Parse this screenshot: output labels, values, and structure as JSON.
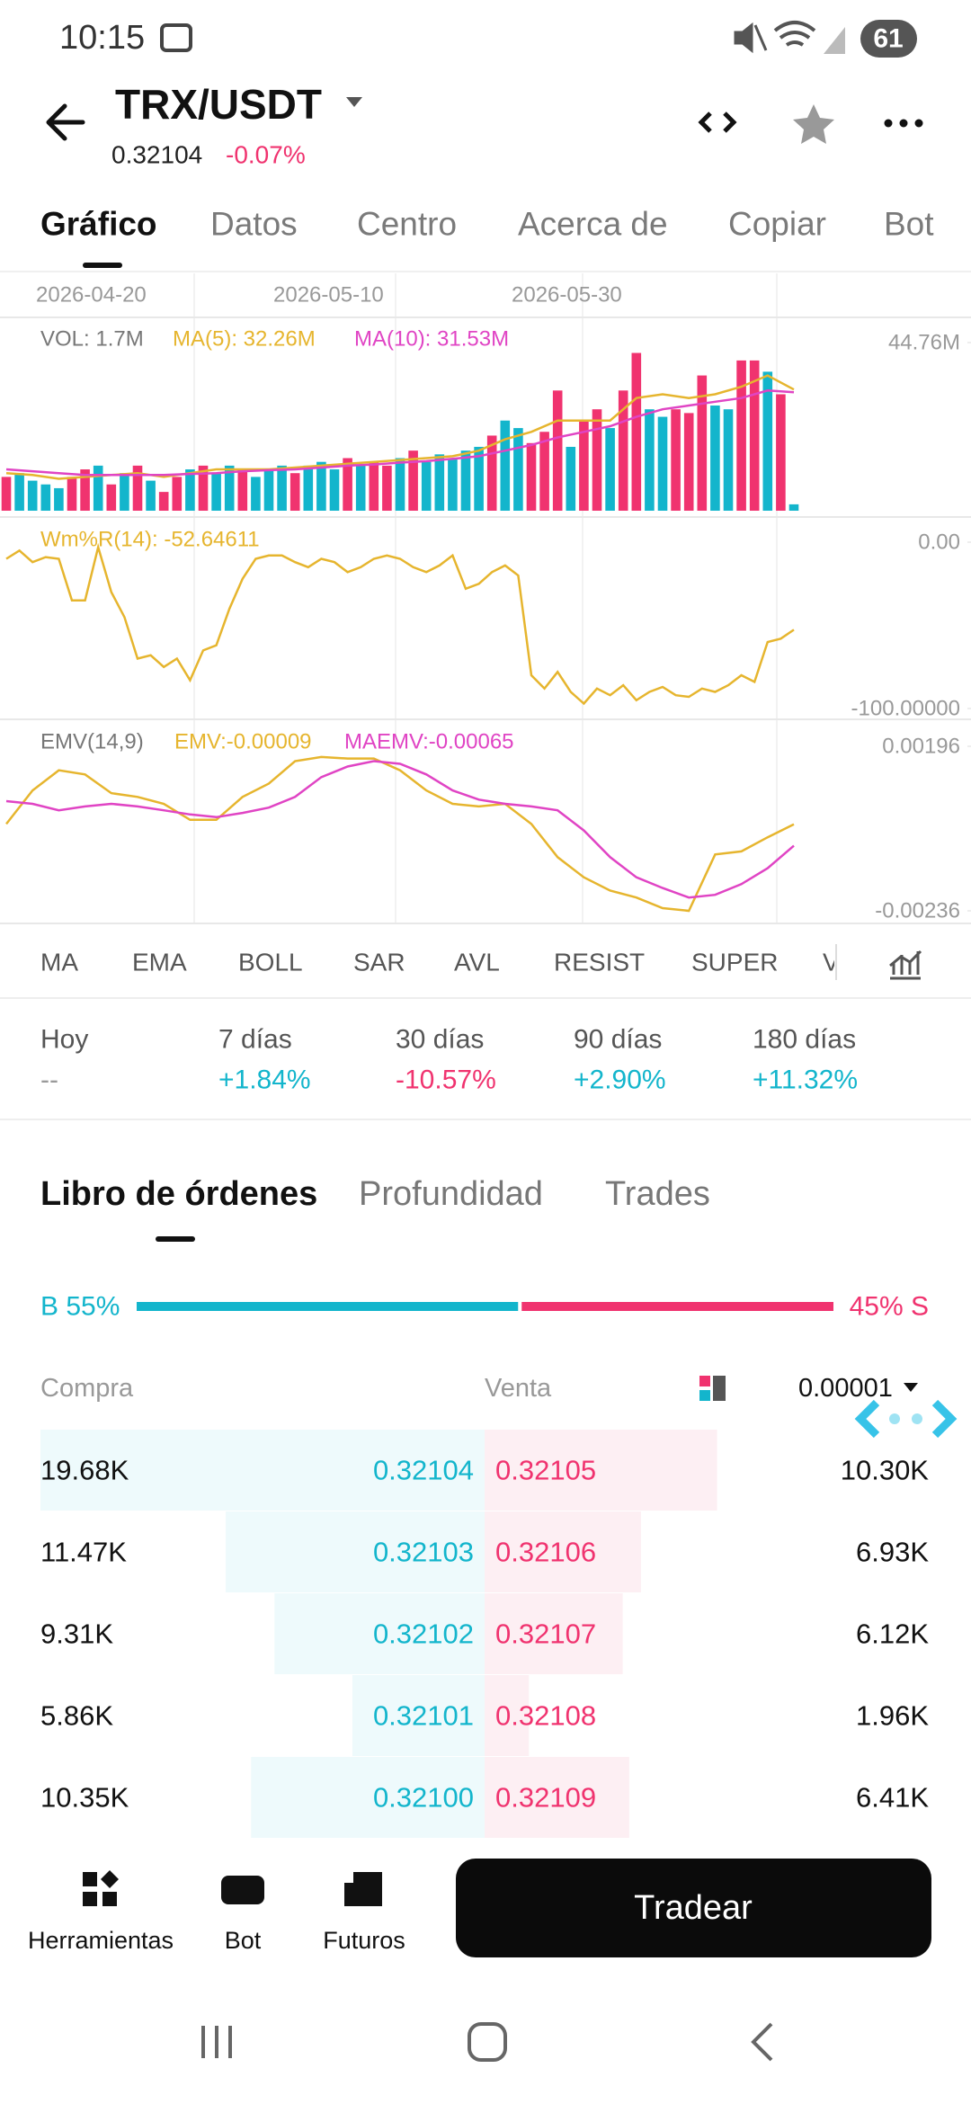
{
  "status_bar": {
    "time": "10:15",
    "battery": "61"
  },
  "header": {
    "pair": "TRX/USDT",
    "price": "0.32104",
    "change": "-0.07%"
  },
  "tabs": [
    "Gráfico",
    "Datos",
    "Centro",
    "Acerca de",
    "Copiar",
    "Bot"
  ],
  "charts": {
    "dates": [
      "2026-04-20",
      "2026-05-10",
      "2026-05-30"
    ],
    "volume": {
      "type": "bar",
      "label": "VOL: 1.7M",
      "values": [
        9,
        10,
        8,
        7,
        6,
        9,
        11,
        12,
        7,
        10,
        12,
        8,
        5,
        9,
        11,
        12,
        10,
        12,
        11,
        9,
        11,
        12,
        10,
        12,
        13,
        11,
        14,
        12,
        13,
        12,
        14,
        16,
        13,
        15,
        14,
        16,
        17,
        20,
        24,
        22,
        18,
        21,
        32,
        17,
        24,
        27,
        22,
        32,
        42,
        27,
        25,
        27,
        26,
        36,
        28,
        27,
        40,
        40,
        37,
        31,
        1.7
      ],
      "colors": [
        "#f0336f",
        "#13b5cc",
        "#13b5cc",
        "#13b5cc",
        "#13b5cc",
        "#f0336f",
        "#f0336f",
        "#13b5cc",
        "#f0336f",
        "#13b5cc",
        "#f0336f",
        "#13b5cc",
        "#f0336f",
        "#f0336f",
        "#13b5cc",
        "#f0336f",
        "#13b5cc",
        "#13b5cc",
        "#f0336f",
        "#13b5cc",
        "#13b5cc",
        "#13b5cc",
        "#f0336f",
        "#13b5cc",
        "#13b5cc",
        "#13b5cc",
        "#f0336f",
        "#13b5cc",
        "#f0336f",
        "#f0336f",
        "#13b5cc",
        "#f0336f",
        "#13b5cc",
        "#13b5cc",
        "#13b5cc",
        "#13b5cc",
        "#13b5cc",
        "#f0336f",
        "#13b5cc",
        "#13b5cc",
        "#f0336f",
        "#f0336f",
        "#f0336f",
        "#13b5cc",
        "#f0336f",
        "#f0336f",
        "#13b5cc",
        "#f0336f",
        "#f0336f",
        "#13b5cc",
        "#13b5cc",
        "#f0336f",
        "#f0336f",
        "#f0336f",
        "#13b5cc",
        "#13b5cc",
        "#f0336f",
        "#f0336f",
        "#13b5cc",
        "#f0336f",
        "#13b5cc"
      ],
      "series": [
        {
          "name": "MA(5): 32.26M",
          "color": "#e6b52e",
          "values": [
            10,
            9.5,
            8.5,
            9,
            9.5,
            10,
            9,
            10,
            11,
            11,
            11,
            11.5,
            12,
            12.5,
            13,
            13.5,
            14,
            14.5,
            16,
            19,
            21,
            24,
            24,
            24,
            30,
            31,
            30,
            31,
            33,
            36,
            32.26
          ]
        },
        {
          "name": "MA(10): 31.53M",
          "color": "#e044c4",
          "values": [
            11,
            10.5,
            10,
            9.5,
            9.5,
            9.5,
            9.5,
            9.8,
            10,
            10.5,
            10.8,
            11,
            11.5,
            12,
            12.3,
            12.8,
            13.2,
            13.8,
            14.5,
            16,
            17.5,
            19.5,
            21,
            22.5,
            25,
            27,
            28,
            29,
            30,
            32,
            31.53
          ]
        }
      ],
      "ylim": [
        0,
        44.76
      ],
      "yticks": [
        {
          "value": 44.76,
          "label": "44.76M"
        }
      ]
    },
    "wmr": {
      "type": "line",
      "series": [
        {
          "name": "Wm%R(14): -52.64611",
          "color": "#e6b52e",
          "values": [
            -10,
            -5,
            -12,
            -9,
            -10,
            -35,
            -35,
            -3,
            -30,
            -45,
            -70,
            -68,
            -75,
            -70,
            -83,
            -65,
            -62,
            -40,
            -22,
            -10,
            -8,
            -8,
            -12,
            -15,
            -10,
            -12,
            -18,
            -15,
            -10,
            -8,
            -10,
            -15,
            -18,
            -14,
            -8,
            -28,
            -25,
            -18,
            -14,
            -20,
            -80,
            -88,
            -78,
            -90,
            -97,
            -88,
            -92,
            -86,
            -95,
            -90,
            -87,
            -92,
            -93,
            -88,
            -90,
            -86,
            -80,
            -84,
            -60,
            -58,
            -52.64611
          ]
        }
      ],
      "ylim": [
        -100,
        0
      ],
      "yticks": [
        {
          "value": 0,
          "label": "0.00"
        },
        {
          "value": -100,
          "label": "-100.00000"
        }
      ]
    },
    "emv": {
      "type": "line",
      "label": "EMV(14,9)",
      "series": [
        {
          "name": "EMV:-0.00009",
          "color": "#e6b52e",
          "values": [
            -8e-05,
            0.0008,
            0.00133,
            0.00122,
            0.00073,
            0.00063,
            0.00045,
            3e-05,
            3e-05,
            0.00063,
            0.00098,
            0.00157,
            0.00168,
            0.00164,
            0.00164,
            0.00133,
            0.0008,
            0.00045,
            0.00038,
            0.00045,
            -8e-05,
            -0.00095,
            -0.00148,
            -0.00183,
            -0.00201,
            -0.00229,
            -0.00236,
            -0.00088,
            -0.0008,
            -0.00043,
            -9e-05
          ]
        },
        {
          "name": "MAEMV:-0.00065",
          "color": "#e044c4",
          "values": [
            0.00052,
            0.00045,
            0.00028,
            0.00038,
            0.00045,
            0.00038,
            0.00028,
            0.00017,
            0.0001,
            0.00021,
            0.00035,
            0.00063,
            0.00115,
            0.00143,
            0.00157,
            0.0015,
            0.00122,
            0.0008,
            0.00056,
            0.00045,
            0.00038,
            0.00028,
            -0.00025,
            -0.00095,
            -0.00148,
            -0.00176,
            -0.00201,
            -0.00194,
            -0.00166,
            -0.00124,
            -0.00065
          ]
        }
      ],
      "ylim": [
        -0.00236,
        0.00196
      ],
      "yticks": [
        0.00196,
        -0.00236
      ]
    }
  },
  "indicators": [
    "MA",
    "EMA",
    "BOLL",
    "SAR",
    "AVL",
    "RESIST",
    "SUPER",
    "V"
  ],
  "performance": [
    {
      "label": "Hoy",
      "value": "--",
      "color": "#9a9a9a"
    },
    {
      "label": "7 días",
      "value": "+1.84%",
      "color": "#13b5cc"
    },
    {
      "label": "30 días",
      "value": "-10.57%",
      "color": "#f0336f"
    },
    {
      "label": "90 días",
      "value": "+2.90%",
      "color": "#13b5cc"
    },
    {
      "label": "180 días",
      "value": "+11.32%",
      "color": "#13b5cc"
    }
  ],
  "order_book": {
    "tabs": [
      "Libro de órdenes",
      "Profundidad",
      "Trades"
    ],
    "buy": {
      "value": 55,
      "label": "B 55%"
    },
    "sell": {
      "value": 45,
      "label": "45% S"
    },
    "columns": {
      "buy": "Compra",
      "sell": "Venta",
      "step": "0.00001"
    },
    "rows": [
      {
        "buy_qty": {
          "value": 19680,
          "label": "19.68K"
        },
        "buy_price": "0.32104",
        "sell_price": "0.32105",
        "sell_qty": {
          "value": 10300,
          "label": "10.30K"
        }
      },
      {
        "buy_qty": {
          "value": 11470,
          "label": "11.47K"
        },
        "buy_price": "0.32103",
        "sell_price": "0.32106",
        "sell_qty": {
          "value": 6930,
          "label": "6.93K"
        }
      },
      {
        "buy_qty": {
          "value": 9310,
          "label": "9.31K"
        },
        "buy_price": "0.32102",
        "sell_price": "0.32107",
        "sell_qty": {
          "value": 6120,
          "label": "6.12K"
        }
      },
      {
        "buy_qty": {
          "value": 5860,
          "label": "5.86K"
        },
        "buy_price": "0.32101",
        "sell_price": "0.32108",
        "sell_qty": {
          "value": 1960,
          "label": "1.96K"
        }
      },
      {
        "buy_qty": {
          "value": 10350,
          "label": "10.35K"
        },
        "buy_price": "0.32100",
        "sell_price": "0.32109",
        "sell_qty": {
          "value": 6410,
          "label": "6.41K"
        }
      }
    ]
  },
  "bottom_bar": {
    "items": [
      "Herramientas",
      "Bot",
      "Futuros"
    ],
    "action": "Tradear"
  }
}
